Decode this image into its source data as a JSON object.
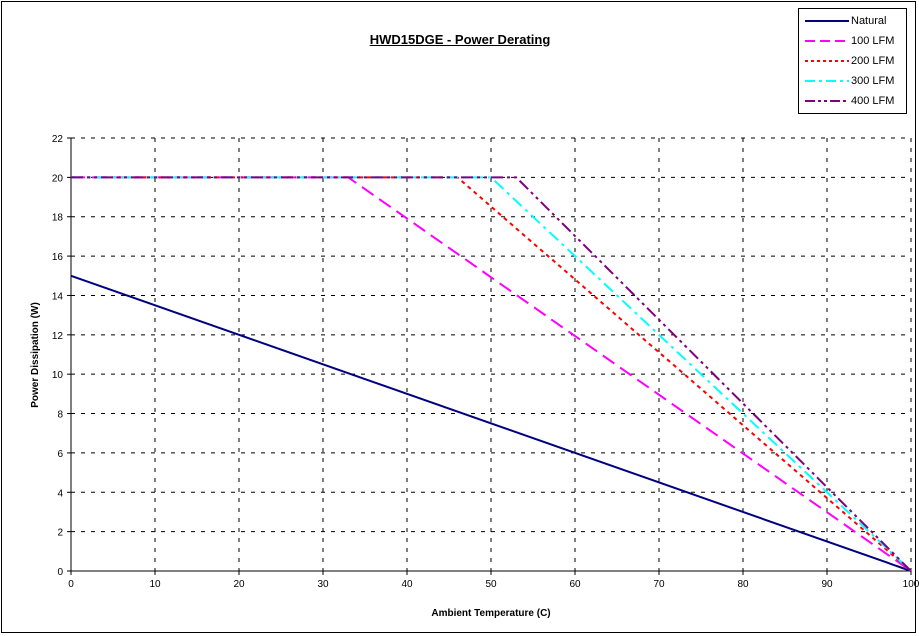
{
  "chart_data": {
    "type": "line",
    "title": "HWD15DGE - Power Derating",
    "xlabel": "Ambient Temperature (C)",
    "ylabel": "Power Dissipation (W)",
    "xlim": [
      0,
      100
    ],
    "ylim": [
      0,
      22
    ],
    "xticks": [
      0,
      10,
      20,
      30,
      40,
      50,
      60,
      70,
      80,
      90,
      100
    ],
    "yticks": [
      0,
      2,
      4,
      6,
      8,
      10,
      12,
      14,
      16,
      18,
      20,
      22
    ],
    "grid": true,
    "legend_position": "top-right",
    "series": [
      {
        "name": "Natural",
        "color": "#000080",
        "dash": "solid",
        "x": [
          0,
          100
        ],
        "y": [
          15,
          0
        ]
      },
      {
        "name": "100 LFM",
        "color": "#ff00ff",
        "dash": "long",
        "x": [
          0,
          33,
          100
        ],
        "y": [
          20,
          20,
          0
        ]
      },
      {
        "name": "200 LFM",
        "color": "#ff0000",
        "dash": "dot",
        "x": [
          0,
          46,
          100
        ],
        "y": [
          20,
          20,
          0
        ]
      },
      {
        "name": "300 LFM",
        "color": "#00ffff",
        "dash": "dashdot",
        "x": [
          0,
          50,
          100
        ],
        "y": [
          20,
          20,
          0
        ]
      },
      {
        "name": "400 LFM",
        "color": "#800080",
        "dash": "dashdotdot",
        "x": [
          0,
          53,
          100
        ],
        "y": [
          20,
          20,
          0
        ]
      }
    ]
  }
}
